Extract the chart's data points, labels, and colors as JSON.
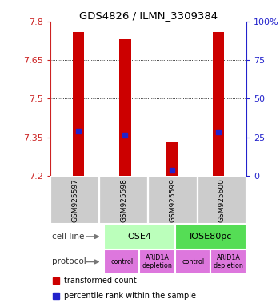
{
  "title": "GDS4826 / ILMN_3309384",
  "samples": [
    "GSM925597",
    "GSM925598",
    "GSM925599",
    "GSM925600"
  ],
  "y_min": 7.2,
  "y_max": 7.8,
  "y_ticks_left": [
    7.2,
    7.35,
    7.5,
    7.65,
    7.8
  ],
  "y_ticks_right": [
    0,
    25,
    50,
    75,
    100
  ],
  "bar_bottoms": [
    7.2,
    7.2,
    7.2,
    7.2
  ],
  "bar_tops": [
    7.76,
    7.73,
    7.33,
    7.76
  ],
  "blue_vals": [
    7.373,
    7.36,
    7.222,
    7.37
  ],
  "bar_color": "#cc0000",
  "blue_color": "#2222cc",
  "cell_line_colors": {
    "OSE4": "#bbffbb",
    "IOSE80pc": "#55dd55"
  },
  "cell_groups": [
    [
      "OSE4",
      0,
      2
    ],
    [
      "IOSE80pc",
      2,
      4
    ]
  ],
  "protocols": [
    "control",
    "ARID1A\ndepletion",
    "control",
    "ARID1A\ndepletion"
  ],
  "protocol_color": "#dd77dd",
  "sample_bg": "#cccccc",
  "left_axis_color": "#cc2222",
  "right_axis_color": "#2222cc",
  "legend_red_label": "transformed count",
  "legend_blue_label": "percentile rank within the sample",
  "cell_line_label": "cell line",
  "protocol_label": "protocol",
  "bar_width": 0.25
}
